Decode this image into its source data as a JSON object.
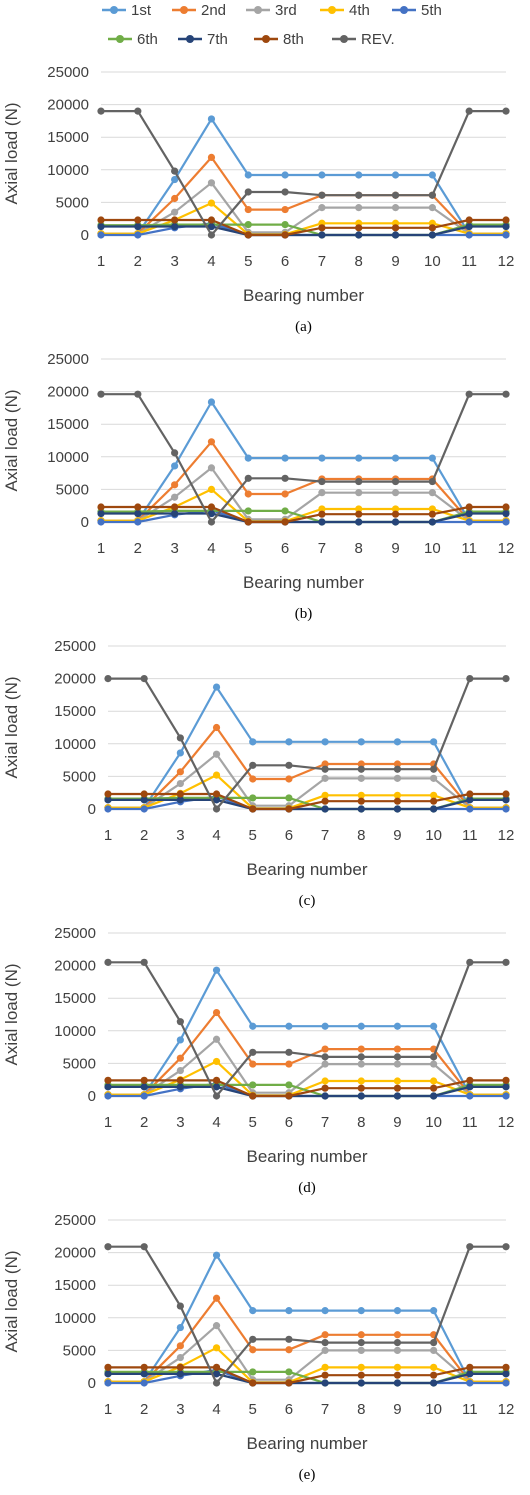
{
  "legend": [
    {
      "name": "1st",
      "color": "#5B9BD5"
    },
    {
      "name": "2nd",
      "color": "#ED7D31"
    },
    {
      "name": "3rd",
      "color": "#A5A5A5"
    },
    {
      "name": "4th",
      "color": "#FFC000"
    },
    {
      "name": "5th",
      "color": "#4472C4"
    },
    {
      "name": "6th",
      "color": "#70AD47"
    },
    {
      "name": "7th",
      "color": "#264478"
    },
    {
      "name": "8th",
      "color": "#9E480E"
    },
    {
      "name": "REV.",
      "color": "#636363"
    }
  ],
  "chart_data": [
    {
      "type": "line",
      "caption": "(a)",
      "xlabel": "Bearing number",
      "ylabel": "Axial load (N)",
      "ylim": [
        0,
        25000
      ],
      "yticks": [
        0,
        5000,
        10000,
        15000,
        20000,
        25000
      ],
      "categories": [
        "1",
        "2",
        "3",
        "4",
        "5",
        "6",
        "7",
        "8",
        "9",
        "10",
        "11",
        "12"
      ],
      "grid": true,
      "series": [
        {
          "name": "1st",
          "color": "#5B9BD5",
          "values": [
            200,
            200,
            8500,
            17800,
            9200,
            9200,
            9200,
            9200,
            9200,
            9200,
            200,
            200
          ]
        },
        {
          "name": "2nd",
          "color": "#ED7D31",
          "values": [
            200,
            200,
            5600,
            11900,
            3900,
            3900,
            6100,
            6100,
            6100,
            6100,
            200,
            200
          ]
        },
        {
          "name": "3rd",
          "color": "#A5A5A5",
          "values": [
            200,
            200,
            3500,
            8000,
            400,
            400,
            4200,
            4200,
            4200,
            4200,
            200,
            200
          ]
        },
        {
          "name": "4th",
          "color": "#FFC000",
          "values": [
            200,
            200,
            2300,
            4900,
            100,
            100,
            1800,
            1800,
            1800,
            1800,
            200,
            200
          ]
        },
        {
          "name": "5th",
          "color": "#4472C4",
          "values": [
            0,
            0,
            1100,
            1800,
            0,
            0,
            0,
            0,
            0,
            0,
            0,
            0
          ]
        },
        {
          "name": "6th",
          "color": "#70AD47",
          "values": [
            1500,
            1500,
            1600,
            1600,
            1600,
            1600,
            0,
            0,
            0,
            0,
            1600,
            1600
          ]
        },
        {
          "name": "7th",
          "color": "#264478",
          "values": [
            1300,
            1300,
            1300,
            1300,
            0,
            0,
            0,
            0,
            0,
            0,
            1300,
            1300
          ]
        },
        {
          "name": "8th",
          "color": "#9E480E",
          "values": [
            2300,
            2300,
            2300,
            2300,
            0,
            0,
            1100,
            1100,
            1100,
            1100,
            2300,
            2300
          ]
        },
        {
          "name": "REV.",
          "color": "#636363",
          "values": [
            19000,
            19000,
            9800,
            0,
            6600,
            6600,
            6100,
            6100,
            6100,
            6100,
            19000,
            19000
          ]
        }
      ]
    },
    {
      "type": "line",
      "caption": "(b)",
      "xlabel": "Bearing number",
      "ylabel": "Axial load (N)",
      "ylim": [
        0,
        25000
      ],
      "yticks": [
        0,
        5000,
        10000,
        15000,
        20000,
        25000
      ],
      "categories": [
        "1",
        "2",
        "3",
        "4",
        "5",
        "6",
        "7",
        "8",
        "9",
        "10",
        "11",
        "12"
      ],
      "grid": true,
      "series": [
        {
          "name": "1st",
          "color": "#5B9BD5",
          "values": [
            200,
            200,
            8600,
            18400,
            9800,
            9800,
            9800,
            9800,
            9800,
            9800,
            200,
            200
          ]
        },
        {
          "name": "2nd",
          "color": "#ED7D31",
          "values": [
            200,
            200,
            5700,
            12300,
            4300,
            4300,
            6600,
            6600,
            6600,
            6600,
            200,
            200
          ]
        },
        {
          "name": "3rd",
          "color": "#A5A5A5",
          "values": [
            200,
            200,
            3800,
            8300,
            400,
            400,
            4500,
            4500,
            4500,
            4500,
            200,
            200
          ]
        },
        {
          "name": "4th",
          "color": "#FFC000",
          "values": [
            200,
            200,
            2300,
            5000,
            100,
            100,
            2000,
            2000,
            2000,
            2000,
            200,
            200
          ]
        },
        {
          "name": "5th",
          "color": "#4472C4",
          "values": [
            0,
            0,
            1100,
            1800,
            0,
            0,
            0,
            0,
            0,
            0,
            0,
            0
          ]
        },
        {
          "name": "6th",
          "color": "#70AD47",
          "values": [
            1600,
            1600,
            1700,
            1700,
            1700,
            1700,
            0,
            0,
            0,
            0,
            1600,
            1600
          ]
        },
        {
          "name": "7th",
          "color": "#264478",
          "values": [
            1300,
            1300,
            1300,
            1300,
            0,
            0,
            0,
            0,
            0,
            0,
            1300,
            1300
          ]
        },
        {
          "name": "8th",
          "color": "#9E480E",
          "values": [
            2300,
            2300,
            2300,
            2300,
            0,
            0,
            1200,
            1200,
            1200,
            1200,
            2300,
            2300
          ]
        },
        {
          "name": "REV.",
          "color": "#636363",
          "values": [
            19600,
            19600,
            10600,
            0,
            6700,
            6700,
            6200,
            6200,
            6200,
            6200,
            19600,
            19600
          ]
        }
      ]
    },
    {
      "type": "line",
      "caption": "(c)",
      "xlabel": "Bearing number",
      "ylabel": "Axial load (N)",
      "ylim": [
        0,
        25000
      ],
      "yticks": [
        0,
        5000,
        10000,
        15000,
        20000,
        25000
      ],
      "categories": [
        "1",
        "2",
        "3",
        "4",
        "5",
        "6",
        "7",
        "8",
        "9",
        "10",
        "11",
        "12"
      ],
      "grid": true,
      "series": [
        {
          "name": "1st",
          "color": "#5B9BD5",
          "values": [
            200,
            200,
            8600,
            18700,
            10300,
            10300,
            10300,
            10300,
            10300,
            10300,
            200,
            200
          ]
        },
        {
          "name": "2nd",
          "color": "#ED7D31",
          "values": [
            200,
            200,
            5700,
            12500,
            4600,
            4600,
            6900,
            6900,
            6900,
            6900,
            200,
            200
          ]
        },
        {
          "name": "3rd",
          "color": "#A5A5A5",
          "values": [
            200,
            200,
            3900,
            8400,
            500,
            500,
            4700,
            4700,
            4700,
            4700,
            200,
            200
          ]
        },
        {
          "name": "4th",
          "color": "#FFC000",
          "values": [
            200,
            200,
            2400,
            5200,
            100,
            100,
            2100,
            2100,
            2100,
            2100,
            200,
            200
          ]
        },
        {
          "name": "5th",
          "color": "#4472C4",
          "values": [
            0,
            0,
            1100,
            1900,
            0,
            0,
            0,
            0,
            0,
            0,
            0,
            0
          ]
        },
        {
          "name": "6th",
          "color": "#70AD47",
          "values": [
            1600,
            1600,
            1700,
            1700,
            1700,
            1700,
            0,
            0,
            0,
            0,
            1600,
            1600
          ]
        },
        {
          "name": "7th",
          "color": "#264478",
          "values": [
            1400,
            1400,
            1400,
            1400,
            0,
            0,
            0,
            0,
            0,
            0,
            1400,
            1400
          ]
        },
        {
          "name": "8th",
          "color": "#9E480E",
          "values": [
            2300,
            2300,
            2300,
            2300,
            0,
            0,
            1200,
            1200,
            1200,
            1200,
            2300,
            2300
          ]
        },
        {
          "name": "REV.",
          "color": "#636363",
          "values": [
            20000,
            20000,
            10900,
            0,
            6700,
            6700,
            6100,
            6100,
            6100,
            6100,
            20000,
            20000
          ]
        }
      ]
    },
    {
      "type": "line",
      "caption": "(d)",
      "xlabel": "Bearing number",
      "ylabel": "Axial load (N)",
      "ylim": [
        0,
        25000
      ],
      "yticks": [
        0,
        5000,
        10000,
        15000,
        20000,
        25000
      ],
      "categories": [
        "1",
        "2",
        "3",
        "4",
        "5",
        "6",
        "7",
        "8",
        "9",
        "10",
        "11",
        "12"
      ],
      "grid": true,
      "series": [
        {
          "name": "1st",
          "color": "#5B9BD5",
          "values": [
            200,
            200,
            8600,
            19300,
            10700,
            10700,
            10700,
            10700,
            10700,
            10700,
            200,
            200
          ]
        },
        {
          "name": "2nd",
          "color": "#ED7D31",
          "values": [
            200,
            200,
            5800,
            12800,
            4900,
            4900,
            7200,
            7200,
            7200,
            7200,
            200,
            200
          ]
        },
        {
          "name": "3rd",
          "color": "#A5A5A5",
          "values": [
            200,
            200,
            3900,
            8700,
            500,
            500,
            4900,
            4900,
            4900,
            4900,
            200,
            200
          ]
        },
        {
          "name": "4th",
          "color": "#FFC000",
          "values": [
            200,
            200,
            2500,
            5300,
            100,
            100,
            2300,
            2300,
            2300,
            2300,
            200,
            200
          ]
        },
        {
          "name": "5th",
          "color": "#4472C4",
          "values": [
            0,
            0,
            1100,
            1900,
            0,
            0,
            0,
            0,
            0,
            0,
            0,
            0
          ]
        },
        {
          "name": "6th",
          "color": "#70AD47",
          "values": [
            1700,
            1700,
            1700,
            1700,
            1700,
            1700,
            0,
            0,
            0,
            0,
            1700,
            1700
          ]
        },
        {
          "name": "7th",
          "color": "#264478",
          "values": [
            1400,
            1400,
            1400,
            1400,
            0,
            0,
            0,
            0,
            0,
            0,
            1400,
            1400
          ]
        },
        {
          "name": "8th",
          "color": "#9E480E",
          "values": [
            2400,
            2400,
            2400,
            2400,
            0,
            0,
            1200,
            1200,
            1200,
            1200,
            2400,
            2400
          ]
        },
        {
          "name": "REV.",
          "color": "#636363",
          "values": [
            20500,
            20500,
            11400,
            0,
            6700,
            6700,
            6000,
            6000,
            6000,
            6000,
            20500,
            20500
          ]
        }
      ]
    },
    {
      "type": "line",
      "caption": "(e)",
      "xlabel": "Bearing number",
      "ylabel": "Axial load (N)",
      "ylim": [
        0,
        25000
      ],
      "yticks": [
        0,
        5000,
        10000,
        15000,
        20000,
        25000
      ],
      "categories": [
        "1",
        "2",
        "3",
        "4",
        "5",
        "6",
        "7",
        "8",
        "9",
        "10",
        "11",
        "12"
      ],
      "grid": true,
      "series": [
        {
          "name": "1st",
          "color": "#5B9BD5",
          "values": [
            200,
            200,
            8500,
            19600,
            11100,
            11100,
            11100,
            11100,
            11100,
            11100,
            200,
            200
          ]
        },
        {
          "name": "2nd",
          "color": "#ED7D31",
          "values": [
            200,
            200,
            5700,
            13000,
            5100,
            5100,
            7400,
            7400,
            7400,
            7400,
            200,
            200
          ]
        },
        {
          "name": "3rd",
          "color": "#A5A5A5",
          "values": [
            200,
            200,
            3900,
            8800,
            500,
            500,
            5000,
            5000,
            5000,
            5000,
            200,
            200
          ]
        },
        {
          "name": "4th",
          "color": "#FFC000",
          "values": [
            200,
            200,
            2500,
            5400,
            100,
            100,
            2400,
            2400,
            2400,
            2400,
            200,
            200
          ]
        },
        {
          "name": "5th",
          "color": "#4472C4",
          "values": [
            0,
            0,
            1100,
            2000,
            0,
            0,
            0,
            0,
            0,
            0,
            0,
            0
          ]
        },
        {
          "name": "6th",
          "color": "#70AD47",
          "values": [
            1700,
            1700,
            1700,
            1700,
            1700,
            1700,
            0,
            0,
            0,
            0,
            1700,
            1700
          ]
        },
        {
          "name": "7th",
          "color": "#264478",
          "values": [
            1400,
            1400,
            1400,
            1400,
            0,
            0,
            0,
            0,
            0,
            0,
            1400,
            1400
          ]
        },
        {
          "name": "8th",
          "color": "#9E480E",
          "values": [
            2400,
            2400,
            2400,
            2400,
            0,
            0,
            1200,
            1200,
            1200,
            1200,
            2400,
            2400
          ]
        },
        {
          "name": "REV.",
          "color": "#636363",
          "values": [
            20900,
            20900,
            11800,
            0,
            6700,
            6700,
            6200,
            6200,
            6200,
            6200,
            20900,
            20900
          ]
        }
      ]
    }
  ]
}
